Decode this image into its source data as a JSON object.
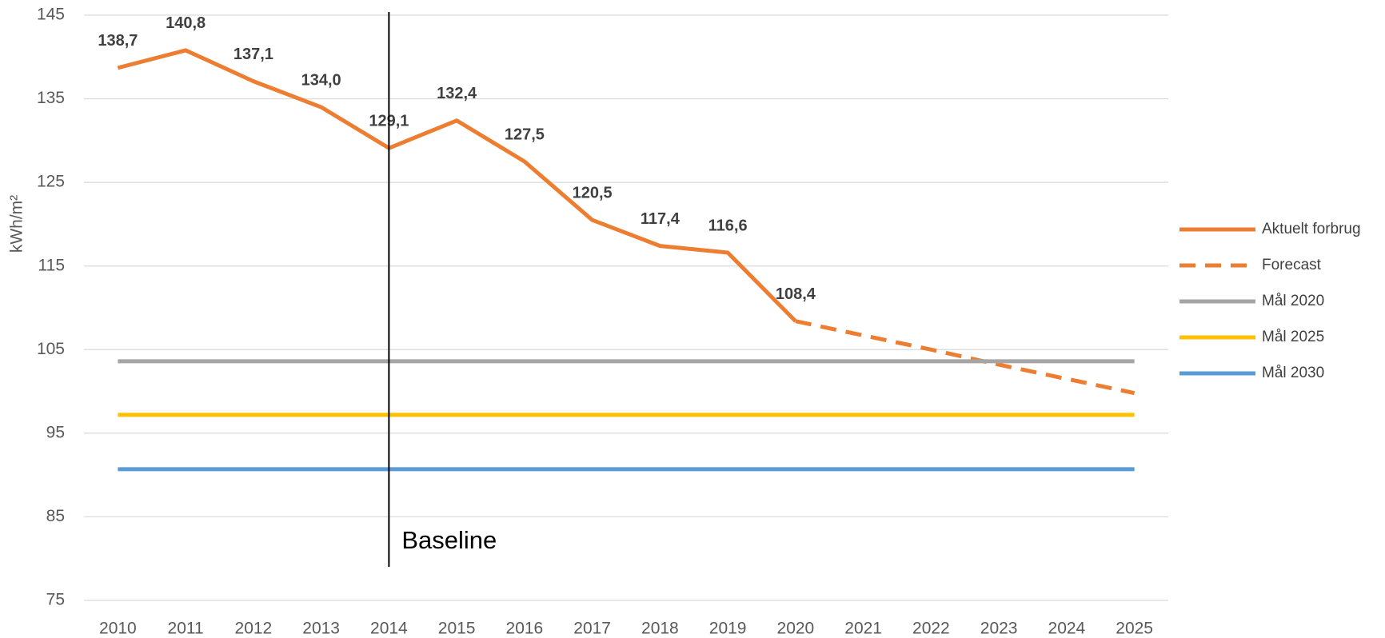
{
  "chart_data": {
    "type": "line",
    "y_label": "kWh/m²",
    "categories": [
      "2010",
      "2011",
      "2012",
      "2013",
      "2014",
      "2015",
      "2016",
      "2017",
      "2018",
      "2019",
      "2020",
      "2021",
      "2022",
      "2023",
      "2024",
      "2025"
    ],
    "series": [
      {
        "name": "Aktuelt forbrug",
        "color": "#ED7D31",
        "dashed": false,
        "values": [
          138.7,
          140.8,
          137.1,
          134.0,
          129.1,
          132.4,
          127.5,
          120.5,
          117.4,
          116.6,
          108.4,
          null,
          null,
          null,
          null,
          null
        ],
        "value_labels": [
          "138,7",
          "140,8",
          "137,1",
          "134,0",
          "129,1",
          "132,4",
          "127,5",
          "120,5",
          "117,4",
          "116,6",
          "108,4",
          null,
          null,
          null,
          null,
          null
        ]
      },
      {
        "name": "Forecast",
        "color": "#ED7D31",
        "dashed": true,
        "values": [
          null,
          null,
          null,
          null,
          null,
          null,
          null,
          null,
          null,
          null,
          108.4,
          106.7,
          105.0,
          103.2,
          101.5,
          99.8
        ]
      },
      {
        "name": "Mål 2020",
        "color": "#A5A5A5",
        "dashed": false,
        "values": [
          103.6,
          103.6,
          103.6,
          103.6,
          103.6,
          103.6,
          103.6,
          103.6,
          103.6,
          103.6,
          103.6,
          103.6,
          103.6,
          103.6,
          103.6,
          103.6
        ]
      },
      {
        "name": "Mål 2025",
        "color": "#FFC000",
        "dashed": false,
        "values": [
          97.2,
          97.2,
          97.2,
          97.2,
          97.2,
          97.2,
          97.2,
          97.2,
          97.2,
          97.2,
          97.2,
          97.2,
          97.2,
          97.2,
          97.2,
          97.2
        ]
      },
      {
        "name": "Mål 2030",
        "color": "#5B9BD5",
        "dashed": false,
        "values": [
          90.7,
          90.7,
          90.7,
          90.7,
          90.7,
          90.7,
          90.7,
          90.7,
          90.7,
          90.7,
          90.7,
          90.7,
          90.7,
          90.7,
          90.7,
          90.7
        ]
      }
    ],
    "ylim": [
      75,
      145
    ],
    "yticks": [
      75,
      85,
      95,
      105,
      115,
      125,
      135,
      145
    ],
    "grid": true,
    "legend": "right",
    "annotations": [
      {
        "text": "Baseline",
        "category": "2014"
      }
    ]
  }
}
